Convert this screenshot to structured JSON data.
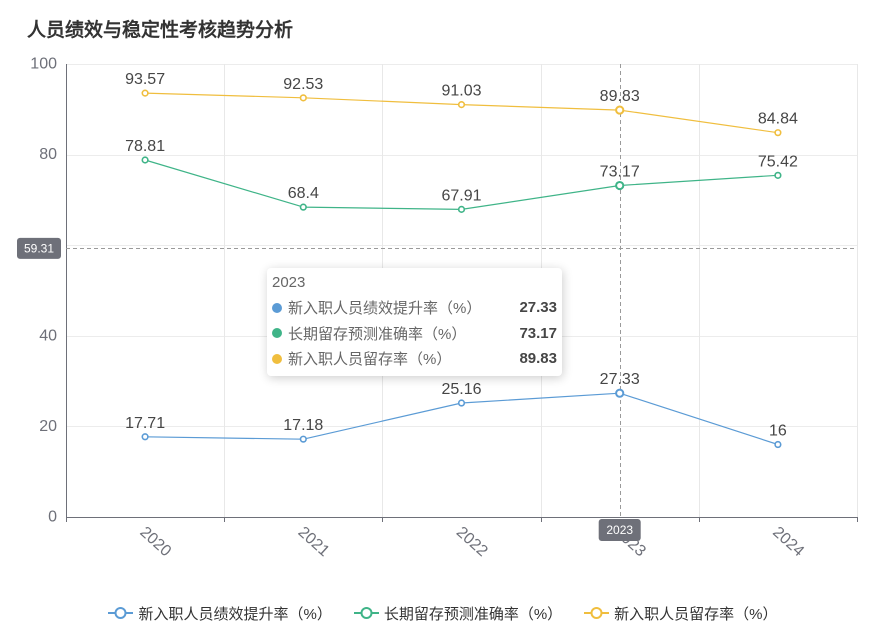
{
  "chart_data": {
    "type": "line",
    "title": "人员绩效与稳定性考核趋势分析",
    "categories": [
      "2020",
      "2021",
      "2022",
      "2023",
      "2024"
    ],
    "series": [
      {
        "name": "新入职人员绩效提升率（%）",
        "values": [
          17.71,
          17.18,
          25.16,
          27.33,
          16
        ],
        "color": "#5B9BD5"
      },
      {
        "name": "长期留存预测准确率（%）",
        "values": [
          78.81,
          68.4,
          67.91,
          73.17,
          75.42
        ],
        "color": "#3FB488"
      },
      {
        "name": "新入职人员留存率（%）",
        "values": [
          93.57,
          92.53,
          91.03,
          89.83,
          84.84
        ],
        "color": "#F0BE3E"
      }
    ],
    "ylim": [
      0,
      100
    ],
    "y_interval": 20,
    "grid": true,
    "legend": "bottom",
    "data_labels": true
  },
  "axis_pointer": {
    "y_label": "59.31",
    "x_label": "2023"
  },
  "tooltip": {
    "title": "2023",
    "items": [
      {
        "name": "新入职人员绩效提升率（%）",
        "value": "27.33"
      },
      {
        "name": "长期留存预测准确率（%）",
        "value": "73.17"
      },
      {
        "name": "新入职人员留存率（%）",
        "value": "89.83"
      }
    ]
  }
}
